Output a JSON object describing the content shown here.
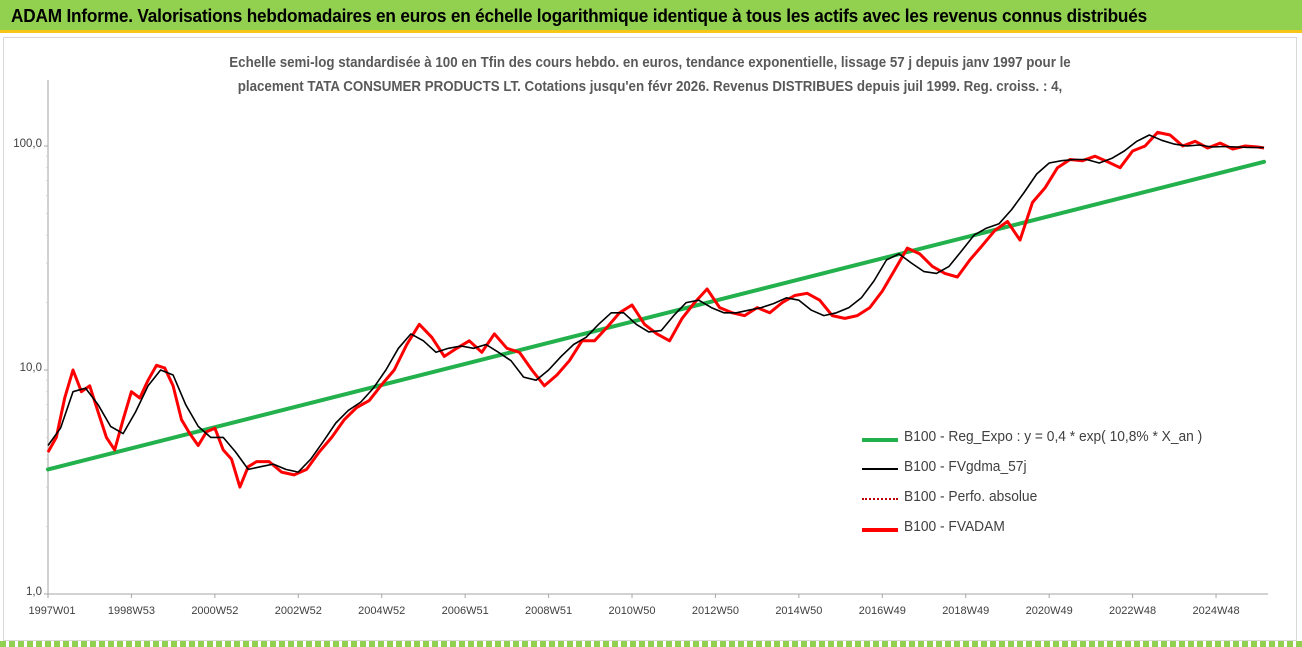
{
  "banner": {
    "title": "ADAM Informe. Valorisations hebdomadaires en euros en échelle logarithmique identique à tous les actifs avec les revenus connus distribués"
  },
  "chart_data": {
    "type": "line",
    "subtitle_line1": "Echelle semi-log standardisée à 100 en Tfin des cours hebdo. en euros, tendance exponentielle, lissage 57 j depuis janv 1997 pour le",
    "subtitle_line2": "placement TATA CONSUMER PRODUCTS LT. Cotations jusqu'en févr 2026. Revenus DISTRIBUES depuis juil 1999. Reg. croiss. : 4,",
    "y_scale": "log",
    "ylim": [
      1,
      100
    ],
    "y_ticks": [
      "1,0",
      "10,0",
      "100,0"
    ],
    "xlim": [
      1997.0,
      2026.15
    ],
    "x_tick_labels": [
      "1997W01",
      "1998W53",
      "2000W52",
      "2002W52",
      "2004W52",
      "2006W51",
      "2008W51",
      "2010W50",
      "2012W50",
      "2014W50",
      "2016W49",
      "2018W49",
      "2020W49",
      "2022W48",
      "2024W48"
    ],
    "x_tick_years": [
      1997.0,
      1999.0,
      2001.0,
      2003.0,
      2005.0,
      2007.0,
      2009.0,
      2011.0,
      2013.0,
      2015.0,
      2017.0,
      2019.0,
      2021.0,
      2023.0,
      2025.0
    ],
    "grid": false,
    "legend_position": "right",
    "legend": [
      {
        "label": "B100 - Reg_Expo : y = 0,4 * exp( 10,8% *  X_an )",
        "color": "#22b14c",
        "style": "solid-thick"
      },
      {
        "label": "B100 - FVgdma_57j",
        "color": "#000000",
        "style": "solid"
      },
      {
        "label": "B100 - Perfo. absolue",
        "color": "#c00000",
        "style": "dotted"
      },
      {
        "label": "B100 - FVADAM",
        "color": "#ff0000",
        "style": "solid-thick"
      }
    ],
    "series": [
      {
        "name": "B100 - Reg_Expo : y = 0,4 * exp( 10,8% *  X_an )",
        "color": "#22b14c",
        "x": [
          1997.0,
          2026.15
        ],
        "y": [
          3.6,
          85.0
        ]
      },
      {
        "name": "B100 - FVADAM",
        "color": "#ff0000",
        "x": [
          1997.0,
          1997.2,
          1997.4,
          1997.6,
          1997.8,
          1998.0,
          1998.2,
          1998.4,
          1998.6,
          1998.8,
          1999.0,
          1999.2,
          1999.4,
          1999.6,
          1999.8,
          2000.0,
          2000.2,
          2000.4,
          2000.6,
          2000.8,
          2001.0,
          2001.2,
          2001.4,
          2001.6,
          2001.8,
          2002.0,
          2002.3,
          2002.6,
          2002.9,
          2003.2,
          2003.5,
          2003.8,
          2004.1,
          2004.4,
          2004.7,
          2005.0,
          2005.3,
          2005.6,
          2005.9,
          2006.2,
          2006.5,
          2006.8,
          2007.1,
          2007.4,
          2007.7,
          2008.0,
          2008.3,
          2008.6,
          2008.9,
          2009.2,
          2009.5,
          2009.8,
          2010.1,
          2010.4,
          2010.7,
          2011.0,
          2011.3,
          2011.6,
          2011.9,
          2012.2,
          2012.5,
          2012.8,
          2013.1,
          2013.4,
          2013.7,
          2014.0,
          2014.3,
          2014.6,
          2014.9,
          2015.2,
          2015.5,
          2015.8,
          2016.1,
          2016.4,
          2016.7,
          2017.0,
          2017.3,
          2017.6,
          2017.9,
          2018.2,
          2018.5,
          2018.8,
          2019.1,
          2019.4,
          2019.7,
          2020.0,
          2020.3,
          2020.6,
          2020.9,
          2021.2,
          2021.5,
          2021.8,
          2022.1,
          2022.4,
          2022.7,
          2023.0,
          2023.3,
          2023.6,
          2023.9,
          2024.2,
          2024.5,
          2024.8,
          2025.1,
          2025.4,
          2025.7,
          2026.0,
          2026.15
        ],
        "y": [
          4.3,
          5.0,
          7.5,
          10.0,
          8.0,
          8.5,
          6.5,
          5.0,
          4.4,
          6.0,
          8.0,
          7.5,
          9.0,
          10.5,
          10.2,
          8.5,
          6.0,
          5.2,
          4.6,
          5.3,
          5.5,
          4.4,
          4.0,
          3.0,
          3.7,
          3.9,
          3.9,
          3.5,
          3.4,
          3.6,
          4.3,
          5.0,
          6.0,
          6.8,
          7.3,
          8.6,
          10.0,
          13.0,
          16.0,
          14.0,
          11.5,
          12.5,
          13.5,
          12.0,
          14.5,
          12.5,
          12.0,
          10.0,
          8.5,
          9.5,
          11.0,
          13.5,
          13.5,
          15.5,
          18.0,
          19.5,
          16.0,
          14.5,
          13.5,
          17.0,
          20.0,
          23.0,
          19.0,
          18.0,
          17.5,
          19.0,
          18.0,
          20.0,
          21.5,
          22.0,
          20.5,
          17.5,
          17.0,
          17.5,
          19.0,
          22.5,
          28.0,
          35.0,
          33.0,
          29.0,
          27.0,
          26.0,
          31.0,
          36.0,
          42.0,
          46.0,
          38.0,
          56.0,
          65.0,
          80.0,
          87.0,
          86.0,
          90.0,
          85.0,
          80.0,
          95.0,
          100.0,
          115.0,
          112.0,
          100.0,
          105.0,
          98.0,
          103.0,
          97.0,
          100.0,
          99.0,
          98.0
        ]
      },
      {
        "name": "B100 - FVgdma_57j",
        "color": "#000000",
        "x": [
          1997.0,
          1997.3,
          1997.6,
          1997.9,
          1998.2,
          1998.5,
          1998.8,
          1999.1,
          1999.4,
          1999.7,
          2000.0,
          2000.3,
          2000.6,
          2000.9,
          2001.2,
          2001.5,
          2001.8,
          2002.1,
          2002.4,
          2002.7,
          2003.0,
          2003.3,
          2003.6,
          2003.9,
          2004.2,
          2004.5,
          2004.8,
          2005.1,
          2005.4,
          2005.7,
          2006.0,
          2006.3,
          2006.6,
          2006.9,
          2007.2,
          2007.5,
          2007.8,
          2008.1,
          2008.4,
          2008.7,
          2009.0,
          2009.3,
          2009.6,
          2009.9,
          2010.2,
          2010.5,
          2010.8,
          2011.1,
          2011.4,
          2011.7,
          2012.0,
          2012.3,
          2012.6,
          2012.9,
          2013.2,
          2013.5,
          2013.8,
          2014.1,
          2014.4,
          2014.7,
          2015.0,
          2015.3,
          2015.6,
          2015.9,
          2016.2,
          2016.5,
          2016.8,
          2017.1,
          2017.4,
          2017.7,
          2018.0,
          2018.3,
          2018.6,
          2018.9,
          2019.2,
          2019.5,
          2019.8,
          2020.1,
          2020.4,
          2020.7,
          2021.0,
          2021.3,
          2021.6,
          2021.9,
          2022.2,
          2022.5,
          2022.8,
          2023.1,
          2023.4,
          2023.7,
          2024.0,
          2024.3,
          2024.6,
          2024.9,
          2025.2,
          2025.5,
          2025.8,
          2026.15
        ],
        "y": [
          4.6,
          5.5,
          8.0,
          8.3,
          7.0,
          5.6,
          5.2,
          6.5,
          8.5,
          10.0,
          9.5,
          7.0,
          5.6,
          5.0,
          5.0,
          4.3,
          3.6,
          3.7,
          3.8,
          3.6,
          3.5,
          4.0,
          4.8,
          5.8,
          6.6,
          7.2,
          8.3,
          10.0,
          12.5,
          14.5,
          13.5,
          12.0,
          12.5,
          12.8,
          12.5,
          13.0,
          12.0,
          11.0,
          9.3,
          9.0,
          10.0,
          11.5,
          13.0,
          14.0,
          16.0,
          18.0,
          18.0,
          16.0,
          14.8,
          15.0,
          17.5,
          20.0,
          20.5,
          19.0,
          18.0,
          18.0,
          18.5,
          19.0,
          19.8,
          21.0,
          20.5,
          18.5,
          17.5,
          18.0,
          19.0,
          21.0,
          25.0,
          31.0,
          33.0,
          30.0,
          27.5,
          27.0,
          29.0,
          34.0,
          40.0,
          43.0,
          45.0,
          52.0,
          62.0,
          75.0,
          84.0,
          86.0,
          87.0,
          87.0,
          84.0,
          88.0,
          95.0,
          105.0,
          112.0,
          106.0,
          102.0,
          100.0,
          101.0,
          99.0,
          99.5,
          99.0,
          98.5,
          98.5
        ]
      }
    ]
  }
}
